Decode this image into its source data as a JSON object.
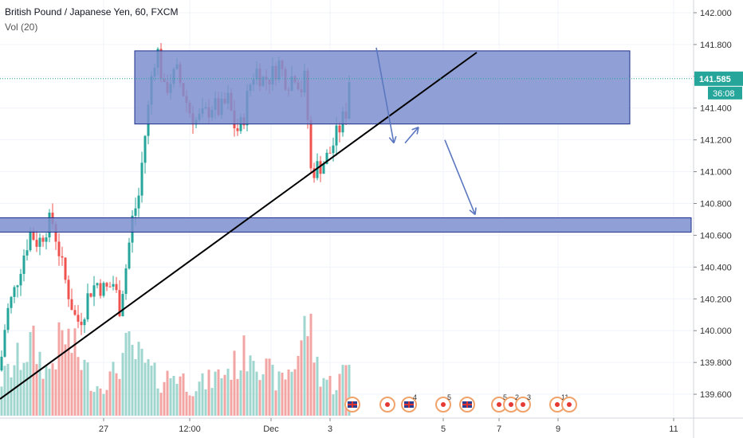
{
  "header": {
    "symbol": "British Pound / Japanese Yen, 60, FXCM",
    "indicator": "Vol (20)"
  },
  "colors": {
    "up": "#26a69a",
    "down": "#ef5350",
    "vol_up": "#9fd6cf",
    "vol_down": "#f3a5a4",
    "zone_fill": "#7d8fcf",
    "zone_stroke": "#1d2f8a",
    "trendline": "#000000",
    "arrow": "#5b77c0",
    "price_label": "#26a69a",
    "current_line": "#26a69a"
  },
  "chart_data": {
    "type": "candlestick",
    "ylim": [
      139.45,
      142.08
    ],
    "y_ticks": [
      142.0,
      141.8,
      141.6,
      141.4,
      141.2,
      141.0,
      140.8,
      140.6,
      140.4,
      140.2,
      140.0,
      139.8,
      139.6
    ],
    "y_tick_labels": [
      "142.000",
      "141.800",
      "141.600",
      "141.400",
      "141.200",
      "141.000",
      "140.800",
      "140.600",
      "140.400",
      "140.200",
      "140.000",
      "139.800",
      "139.600"
    ],
    "x_tick_labels": [
      "27",
      "12:00",
      "Dec",
      "3",
      "5",
      "7",
      "9",
      "11"
    ],
    "x_tick_index": [
      130,
      238,
      340,
      414,
      556,
      626,
      700,
      845
    ],
    "current_price": 141.585,
    "current_price_label": "141.585",
    "countdown_label": "36:08",
    "anchors": [
      [
        0,
        139.75
      ],
      [
        8,
        140.1
      ],
      [
        18,
        140.25
      ],
      [
        28,
        140.45
      ],
      [
        38,
        140.62
      ],
      [
        48,
        140.55
      ],
      [
        58,
        140.65
      ],
      [
        65,
        140.7
      ],
      [
        72,
        140.55
      ],
      [
        80,
        140.35
      ],
      [
        88,
        140.2
      ],
      [
        96,
        140.05
      ],
      [
        104,
        140.1
      ],
      [
        112,
        140.25
      ],
      [
        122,
        140.3
      ],
      [
        132,
        140.25
      ],
      [
        142,
        140.3
      ],
      [
        150,
        140.15
      ],
      [
        158,
        140.4
      ],
      [
        166,
        140.7
      ],
      [
        174,
        140.85
      ],
      [
        180,
        141.15
      ],
      [
        186,
        141.4
      ],
      [
        192,
        141.7
      ],
      [
        198,
        141.75
      ],
      [
        206,
        141.5
      ],
      [
        214,
        141.58
      ],
      [
        222,
        141.62
      ],
      [
        230,
        141.5
      ],
      [
        238,
        141.38
      ],
      [
        246,
        141.32
      ],
      [
        256,
        141.35
      ],
      [
        266,
        141.42
      ],
      [
        276,
        141.38
      ],
      [
        286,
        141.45
      ],
      [
        296,
        141.25
      ],
      [
        304,
        141.3
      ],
      [
        312,
        141.52
      ],
      [
        320,
        141.65
      ],
      [
        330,
        141.58
      ],
      [
        340,
        141.6
      ],
      [
        350,
        141.68
      ],
      [
        360,
        141.56
      ],
      [
        370,
        141.62
      ],
      [
        380,
        141.5
      ],
      [
        384,
        141.66
      ],
      [
        388,
        141.0
      ],
      [
        396,
        141.02
      ],
      [
        404,
        141.05
      ],
      [
        412,
        141.1
      ],
      [
        420,
        141.2
      ],
      [
        428,
        141.3
      ],
      [
        434,
        141.38
      ],
      [
        438,
        141.585
      ]
    ],
    "volume_anchors": [
      [
        0,
        0.35
      ],
      [
        20,
        0.55
      ],
      [
        40,
        0.75
      ],
      [
        60,
        0.45
      ],
      [
        80,
        0.85
      ],
      [
        100,
        0.6
      ],
      [
        120,
        0.3
      ],
      [
        140,
        0.4
      ],
      [
        160,
        0.7
      ],
      [
        180,
        0.55
      ],
      [
        200,
        0.35
      ],
      [
        220,
        0.45
      ],
      [
        240,
        0.3
      ],
      [
        260,
        0.35
      ],
      [
        280,
        0.45
      ],
      [
        300,
        0.55
      ],
      [
        316,
        0.75
      ],
      [
        330,
        0.5
      ],
      [
        350,
        0.35
      ],
      [
        370,
        0.55
      ],
      [
        386,
        1.0
      ],
      [
        400,
        0.45
      ],
      [
        420,
        0.3
      ],
      [
        438,
        0.55
      ]
    ],
    "zones": [
      {
        "name": "upper-zone",
        "x1_idx": 169,
        "x2_idx": 790,
        "y_top": 141.76,
        "y_bottom": 141.3
      },
      {
        "name": "lower-zone",
        "x1_idx": -2,
        "x2_idx": 867,
        "y_top": 140.71,
        "y_bottom": 140.62
      }
    ],
    "trendline": {
      "x1_idx": 0,
      "y1": 139.57,
      "x2_idx": 598,
      "y2": 141.75
    },
    "arrows": [
      {
        "x1_idx": 472,
        "y1": 141.78,
        "x2_idx": 494,
        "y2": 141.18
      },
      {
        "x1_idx": 508,
        "y1": 141.18,
        "x2_idx": 525,
        "y2": 141.28
      },
      {
        "x1_idx": 558,
        "y1": 141.2,
        "x2_idx": 596,
        "y2": 140.73
      }
    ],
    "events": [
      {
        "x_idx": 442,
        "kind": "flag",
        "label": ""
      },
      {
        "x_idx": 486,
        "kind": "dot",
        "label": ""
      },
      {
        "x_idx": 513,
        "kind": "flag",
        "label": "4"
      },
      {
        "x_idx": 556,
        "kind": "dot",
        "label": "5"
      },
      {
        "x_idx": 586,
        "kind": "flag",
        "label": ""
      },
      {
        "x_idx": 626,
        "kind": "dot",
        "label": "5"
      },
      {
        "x_idx": 641,
        "kind": "dot",
        "label": "2"
      },
      {
        "x_idx": 656,
        "kind": "dot",
        "label": "3"
      },
      {
        "x_idx": 699,
        "kind": "dot",
        "label": "11"
      },
      {
        "x_idx": 714,
        "kind": "dot",
        "label": ""
      }
    ]
  }
}
